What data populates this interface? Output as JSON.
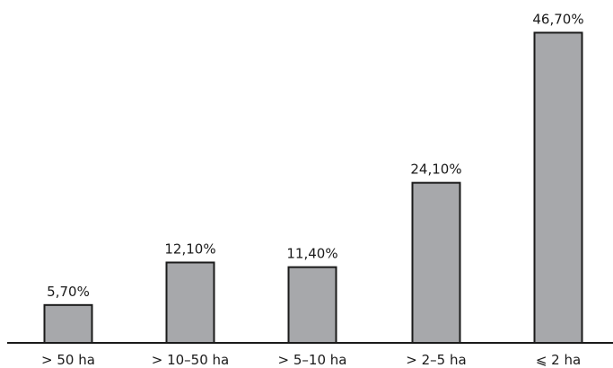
{
  "chart_data": {
    "type": "bar",
    "categories": [
      "> 50 ha",
      "> 10–50 ha",
      "> 5–10 ha",
      "> 2–5 ha",
      "⩽ 2 ha"
    ],
    "values": [
      5.7,
      12.1,
      11.4,
      24.1,
      46.7
    ],
    "data_labels": [
      "5,70%",
      "12,10%",
      "11,40%",
      "24,10%",
      "46,70%"
    ],
    "ylim": [
      0,
      50
    ],
    "grid": false,
    "colors": {
      "bar_fill": "#a7a8ab",
      "bar_stroke": "#1a1a1a"
    }
  }
}
